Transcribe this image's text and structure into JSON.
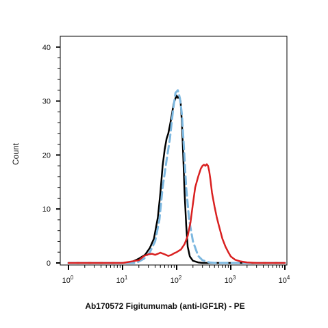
{
  "chart_data": {
    "type": "line",
    "title": "",
    "xlabel": "Ab170572 Figitumumab (anti-IGF1R) - PE",
    "ylabel": "Count",
    "x_scale": "log",
    "xlim": [
      1,
      10000
    ],
    "ylim": [
      0,
      42
    ],
    "grid": false,
    "x_ticks": [
      {
        "base": "10",
        "exp": "0"
      },
      {
        "base": "10",
        "exp": "1"
      },
      {
        "base": "10",
        "exp": "2"
      },
      {
        "base": "10",
        "exp": "3"
      },
      {
        "base": "10",
        "exp": "4"
      }
    ],
    "y_ticks": [
      "0",
      "10",
      "20",
      "30",
      "40"
    ],
    "series": [
      {
        "color": "#000000",
        "style": "solid",
        "x": [
          1,
          10,
          15,
          20,
          26,
          32,
          38,
          45,
          50,
          55,
          60,
          65,
          70,
          75,
          80,
          88,
          95,
          100,
          105,
          110,
          118,
          125,
          132,
          140,
          150,
          160,
          175,
          200,
          250,
          300,
          400,
          10000
        ],
        "y": [
          0,
          0,
          0.2,
          0.8,
          1.5,
          2.8,
          4.5,
          8.5,
          13,
          18,
          21,
          23,
          24,
          25.5,
          27,
          29.5,
          30.5,
          31,
          30.6,
          30.8,
          30,
          26,
          20,
          13,
          7,
          3,
          1.2,
          0.4,
          0.1,
          0,
          0,
          0
        ]
      },
      {
        "color": "#7db8e0",
        "style": "dashed",
        "x": [
          1,
          10,
          18,
          25,
          32,
          40,
          48,
          55,
          65,
          75,
          85,
          95,
          105,
          115,
          125,
          135,
          150,
          170,
          200,
          250,
          300,
          400,
          500,
          700,
          1000,
          10000
        ],
        "y": [
          0,
          0,
          0,
          0.8,
          2,
          4,
          8,
          14,
          19,
          23,
          28,
          31.5,
          32,
          30.5,
          27.5,
          22,
          14,
          8,
          4,
          1.3,
          0.5,
          0.1,
          0,
          0,
          0,
          0
        ]
      },
      {
        "color": "#d92020",
        "style": "solid",
        "x": [
          1,
          10,
          20,
          25,
          30,
          35,
          40,
          45,
          50,
          60,
          70,
          80,
          90,
          100,
          120,
          140,
          160,
          180,
          200,
          220,
          250,
          280,
          300,
          320,
          340,
          360,
          380,
          400,
          420,
          450,
          500,
          550,
          600,
          700,
          800,
          900,
          1000,
          1200,
          1500,
          2000,
          3000,
          5000,
          10000
        ],
        "y": [
          0,
          0,
          0.5,
          1.3,
          1.6,
          1.7,
          1.5,
          1.7,
          1.9,
          1.6,
          1.3,
          1.5,
          1.8,
          2,
          2.5,
          3.5,
          5,
          7.5,
          11,
          14,
          16,
          17.5,
          18,
          18.2,
          18,
          18.3,
          18,
          17,
          15.5,
          13,
          10.5,
          8.5,
          7,
          4.5,
          3,
          2,
          1.2,
          0.6,
          0.3,
          0.1,
          0,
          0,
          0
        ]
      }
    ]
  }
}
